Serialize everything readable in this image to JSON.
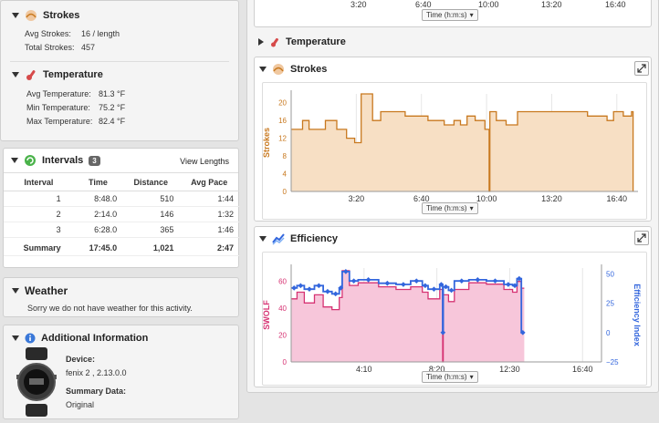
{
  "strokes_summary": {
    "title": "Strokes",
    "avg_label": "Avg Strokes:",
    "avg_value": "16 / length",
    "total_label": "Total Strokes:",
    "total_value": "457"
  },
  "temperature_summary": {
    "title": "Temperature",
    "avg_label": "Avg Temperature:",
    "avg_value": "81.3 °F",
    "min_label": "Min Temperature:",
    "min_value": "75.2 °F",
    "max_label": "Max Temperature:",
    "max_value": "82.4 °F"
  },
  "intervals": {
    "title": "Intervals",
    "count": "3",
    "view_link": "View Lengths",
    "columns": [
      "Interval",
      "Time",
      "Distance",
      "Avg Pace"
    ],
    "rows": [
      [
        "1",
        "8:48.0",
        "510",
        "1:44"
      ],
      [
        "2",
        "2:14.0",
        "146",
        "1:32"
      ],
      [
        "3",
        "6:28.0",
        "365",
        "1:46"
      ]
    ],
    "summary": [
      "Summary",
      "17:45.0",
      "1,021",
      "2:47"
    ]
  },
  "weather": {
    "title": "Weather",
    "message": "Sorry we do not have weather for this activity."
  },
  "additional": {
    "title": "Additional Information",
    "device_label": "Device:",
    "device_value": "fenix 2 , 2.13.0.0",
    "summary_label": "Summary Data:",
    "summary_value": "Original"
  },
  "top_chart": {
    "ticks": [
      "3:20",
      "6:40",
      "10:00",
      "13:20",
      "16:40"
    ],
    "selector": "Time (h:m:s)"
  },
  "temperature_section": {
    "title": "Temperature"
  },
  "colors": {
    "strokes": "#c8781e",
    "strokes_fill": "#f7dfc4",
    "swolf": "#d63373",
    "swolf_fill": "#f7c6da",
    "efficiency": "#3366dd"
  },
  "chart_data": [
    {
      "type": "area",
      "title": "Strokes",
      "xlabel": "Time (h:m:s)",
      "ylabel": "Strokes",
      "xlim": [
        0,
        1065
      ],
      "ylim": [
        0,
        22
      ],
      "yticks": [
        0,
        2,
        4,
        6,
        8,
        10,
        12,
        14,
        16,
        18,
        20
      ],
      "xticks": [
        {
          "v": 200,
          "label": "3:20"
        },
        {
          "v": 400,
          "label": "6:40"
        },
        {
          "v": 600,
          "label": "10:00"
        },
        {
          "v": 800,
          "label": "13:20"
        },
        {
          "v": 1000,
          "label": "16:40"
        }
      ],
      "series": [
        {
          "values": [
            [
              0,
              14
            ],
            [
              35,
              14
            ],
            [
              35,
              16
            ],
            [
              55,
              16
            ],
            [
              55,
              14
            ],
            [
              105,
              14
            ],
            [
              105,
              16
            ],
            [
              140,
              16
            ],
            [
              140,
              14
            ],
            [
              170,
              14
            ],
            [
              170,
              12
            ],
            [
              195,
              12
            ],
            [
              195,
              11
            ],
            [
              215,
              11
            ],
            [
              215,
              22
            ],
            [
              250,
              22
            ],
            [
              250,
              16
            ],
            [
              275,
              16
            ],
            [
              275,
              18
            ],
            [
              350,
              18
            ],
            [
              350,
              17
            ],
            [
              420,
              17
            ],
            [
              420,
              16
            ],
            [
              470,
              16
            ],
            [
              470,
              15
            ],
            [
              500,
              15
            ],
            [
              500,
              16
            ],
            [
              520,
              16
            ],
            [
              520,
              15
            ],
            [
              540,
              15
            ],
            [
              540,
              17
            ],
            [
              565,
              17
            ],
            [
              565,
              16
            ],
            [
              595,
              16
            ],
            [
              595,
              14
            ],
            [
              608,
              14
            ],
            [
              608,
              0
            ],
            [
              610,
              0
            ],
            [
              610,
              18
            ],
            [
              630,
              18
            ],
            [
              630,
              16
            ],
            [
              660,
              16
            ],
            [
              660,
              15
            ],
            [
              695,
              15
            ],
            [
              695,
              18
            ],
            [
              910,
              18
            ],
            [
              910,
              17
            ],
            [
              970,
              17
            ],
            [
              970,
              16
            ],
            [
              990,
              16
            ],
            [
              990,
              18
            ],
            [
              1020,
              18
            ],
            [
              1020,
              17
            ],
            [
              1045,
              17
            ],
            [
              1045,
              18
            ],
            [
              1050,
              18
            ],
            [
              1050,
              0
            ]
          ]
        }
      ]
    },
    {
      "type": "line",
      "title": "Efficiency",
      "xlabel": "Time (h:m:s)",
      "xticks": [
        {
          "v": 250,
          "label": "4:10"
        },
        {
          "v": 500,
          "label": "8:20"
        },
        {
          "v": 750,
          "label": "12:30"
        },
        {
          "v": 1000,
          "label": "16:40"
        }
      ],
      "xlim": [
        0,
        1065
      ],
      "y_left": {
        "label": "SWOLF",
        "ylim": [
          0,
          70
        ],
        "ticks": [
          0,
          20,
          40,
          60
        ]
      },
      "y_right": {
        "label": "Efficiency Index",
        "ylim": [
          -25,
          55
        ],
        "ticks": [
          -25,
          0,
          25,
          50
        ]
      },
      "series": [
        {
          "axis": "left",
          "values": [
            [
              0,
              47
            ],
            [
              20,
              47
            ],
            [
              20,
              52
            ],
            [
              45,
              52
            ],
            [
              45,
              44
            ],
            [
              80,
              44
            ],
            [
              80,
              50
            ],
            [
              110,
              50
            ],
            [
              110,
              41
            ],
            [
              140,
              41
            ],
            [
              140,
              39
            ],
            [
              165,
              39
            ],
            [
              165,
              48
            ],
            [
              175,
              48
            ],
            [
              175,
              68
            ],
            [
              200,
              68
            ],
            [
              200,
              57
            ],
            [
              230,
              57
            ],
            [
              230,
              59
            ],
            [
              300,
              59
            ],
            [
              300,
              56
            ],
            [
              360,
              56
            ],
            [
              360,
              54
            ],
            [
              410,
              54
            ],
            [
              410,
              56
            ],
            [
              450,
              56
            ],
            [
              450,
              52
            ],
            [
              470,
              52
            ],
            [
              470,
              47
            ],
            [
              510,
              47
            ],
            [
              510,
              54
            ],
            [
              520,
              54
            ],
            [
              520,
              0
            ],
            [
              522,
              0
            ],
            [
              522,
              50
            ],
            [
              540,
              50
            ],
            [
              540,
              45
            ],
            [
              560,
              45
            ],
            [
              560,
              54
            ],
            [
              610,
              54
            ],
            [
              610,
              59
            ],
            [
              670,
              59
            ],
            [
              670,
              58
            ],
            [
              730,
              58
            ],
            [
              730,
              54
            ],
            [
              760,
              54
            ],
            [
              760,
              52
            ],
            [
              775,
              52
            ],
            [
              775,
              60
            ],
            [
              790,
              60
            ],
            [
              790,
              55
            ],
            [
              800,
              55
            ]
          ]
        },
        {
          "axis": "right",
          "values": [
            [
              0,
              38
            ],
            [
              20,
              38
            ],
            [
              20,
              40
            ],
            [
              45,
              40
            ],
            [
              45,
              37
            ],
            [
              80,
              37
            ],
            [
              80,
              40
            ],
            [
              110,
              40
            ],
            [
              110,
              35
            ],
            [
              140,
              35
            ],
            [
              140,
              33
            ],
            [
              165,
              33
            ],
            [
              165,
              38
            ],
            [
              175,
              38
            ],
            [
              175,
              52
            ],
            [
              200,
              52
            ],
            [
              200,
              44
            ],
            [
              230,
              44
            ],
            [
              230,
              45
            ],
            [
              300,
              45
            ],
            [
              300,
              42
            ],
            [
              360,
              42
            ],
            [
              360,
              41
            ],
            [
              410,
              41
            ],
            [
              410,
              44
            ],
            [
              450,
              44
            ],
            [
              450,
              40
            ],
            [
              470,
              40
            ],
            [
              470,
              37
            ],
            [
              510,
              37
            ],
            [
              510,
              41
            ],
            [
              520,
              41
            ],
            [
              520,
              0
            ],
            [
              522,
              0
            ],
            [
              522,
              39
            ],
            [
              540,
              39
            ],
            [
              540,
              36
            ],
            [
              560,
              36
            ],
            [
              560,
              44
            ],
            [
              610,
              44
            ],
            [
              610,
              45
            ],
            [
              670,
              45
            ],
            [
              670,
              44
            ],
            [
              730,
              44
            ],
            [
              730,
              41
            ],
            [
              760,
              41
            ],
            [
              760,
              40
            ],
            [
              775,
              40
            ],
            [
              775,
              46
            ],
            [
              790,
              46
            ],
            [
              790,
              0
            ],
            [
              800,
              0
            ]
          ]
        }
      ]
    }
  ]
}
